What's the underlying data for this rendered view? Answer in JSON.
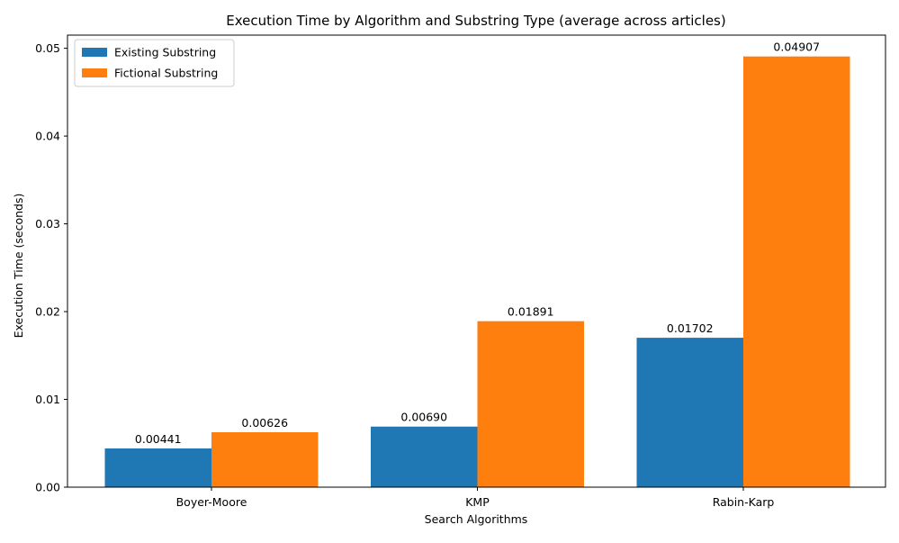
{
  "chart_data": {
    "type": "bar",
    "title": "Execution Time by Algorithm and Substring Type (average across articles)",
    "xlabel": "Search Algorithms",
    "ylabel": "Execution Time (seconds)",
    "categories": [
      "Boyer-Moore",
      "KMP",
      "Rabin-Karp"
    ],
    "series": [
      {
        "name": "Existing Substring",
        "color": "#1f77b4",
        "values": [
          0.00441,
          0.0069,
          0.01702
        ],
        "labels": [
          "0.00441",
          "0.00690",
          "0.01702"
        ]
      },
      {
        "name": "Fictional Substring",
        "color": "#ff7f0e",
        "values": [
          0.00626,
          0.01891,
          0.04907
        ],
        "labels": [
          "0.00626",
          "0.01891",
          "0.04907"
        ]
      }
    ],
    "ylim": [
      0,
      0.0515
    ],
    "yticks": [
      0,
      0.01,
      0.02,
      0.03,
      0.04,
      0.05
    ],
    "ytick_labels": [
      "0.00",
      "0.01",
      "0.02",
      "0.03",
      "0.04",
      "0.05"
    ],
    "grid": false,
    "legend_position": "top-left"
  }
}
